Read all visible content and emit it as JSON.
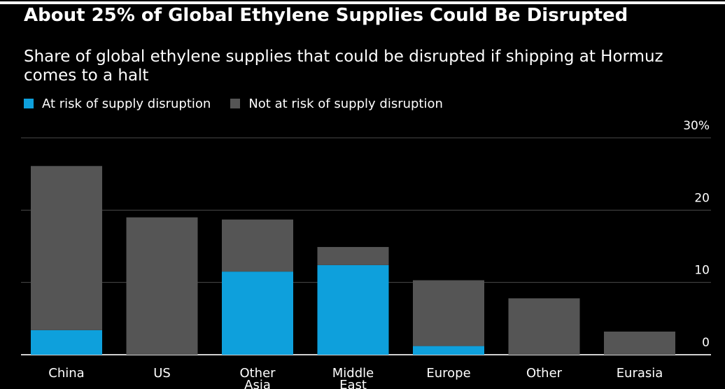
{
  "chart_data": {
    "type": "bar",
    "stacked": true,
    "title": "About 25% of Global Ethylene Supplies Could Be Disrupted",
    "subtitle": "Share of global ethylene supplies that could be disrupted if shipping at Hormuz comes to a halt",
    "categories": [
      "China",
      "US",
      "Other Asia",
      "Middle East",
      "Europe",
      "Other",
      "Eurasia"
    ],
    "category_lines": [
      [
        "China"
      ],
      [
        "US"
      ],
      [
        "Other",
        "Asia"
      ],
      [
        "Middle",
        "East"
      ],
      [
        "Europe"
      ],
      [
        "Other"
      ],
      [
        "Eurasia"
      ]
    ],
    "series": [
      {
        "name": "At risk of supply disruption",
        "color": "#0ea0dc",
        "values": [
          3.4,
          0,
          11.5,
          12.4,
          1.2,
          0,
          0
        ]
      },
      {
        "name": "Not at risk of supply disruption",
        "color": "#555555",
        "values": [
          22.7,
          19.0,
          7.2,
          2.5,
          9.1,
          7.8,
          3.2
        ]
      }
    ],
    "y_ticks": [
      {
        "value": 0,
        "label": "0"
      },
      {
        "value": 10,
        "label": "10"
      },
      {
        "value": 20,
        "label": "20"
      },
      {
        "value": 30,
        "label": "30%"
      }
    ],
    "ylim": [
      0,
      30
    ],
    "y_axis_side": "right",
    "grid": true,
    "legend_position": "top-left"
  }
}
